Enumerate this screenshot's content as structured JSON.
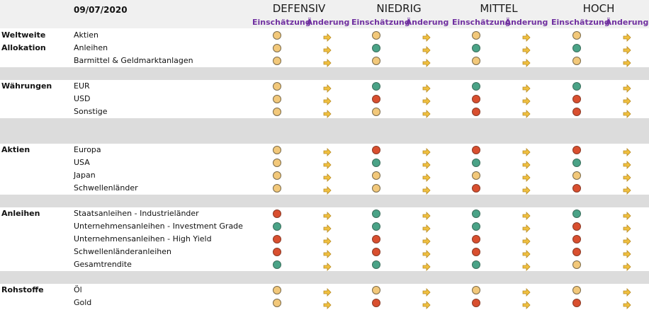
{
  "date": "09/07/2020",
  "profiles": [
    "DEFENSIV",
    "NIEDRIG",
    "MITTEL",
    "HOCH"
  ],
  "sub_labels": {
    "assessment": "Einschätzung",
    "change": "Änderung"
  },
  "colors": {
    "yellow": "#f2c87a",
    "green": "#4aa387",
    "red": "#d94f2f",
    "arrow": "#f0c040",
    "accent": "#7030a0"
  },
  "icon": "arrow-right-icon",
  "sections": [
    {
      "category": [
        "Weltweite",
        "Allokation"
      ],
      "rows": [
        {
          "label": "Aktien",
          "ratings": [
            "y",
            "y",
            "y",
            "y"
          ]
        },
        {
          "label": "Anleihen",
          "ratings": [
            "y",
            "g",
            "g",
            "g"
          ]
        },
        {
          "label": "Barmittel & Geldmarktanlagen",
          "ratings": [
            "y",
            "y",
            "y",
            "y"
          ]
        }
      ]
    },
    {
      "category": [
        "Währungen"
      ],
      "rows": [
        {
          "label": "EUR",
          "ratings": [
            "y",
            "g",
            "g",
            "g"
          ]
        },
        {
          "label": "USD",
          "ratings": [
            "y",
            "r",
            "r",
            "r"
          ]
        },
        {
          "label": "Sonstige",
          "ratings": [
            "y",
            "y",
            "r",
            "r"
          ]
        }
      ]
    },
    {
      "category": [
        "Aktien"
      ],
      "rows": [
        {
          "label": "Europa",
          "ratings": [
            "y",
            "r",
            "r",
            "r"
          ]
        },
        {
          "label": "USA",
          "ratings": [
            "y",
            "g",
            "g",
            "g"
          ]
        },
        {
          "label": "Japan",
          "ratings": [
            "y",
            "y",
            "y",
            "y"
          ]
        },
        {
          "label": "Schwellenländer",
          "ratings": [
            "y",
            "y",
            "r",
            "r"
          ]
        }
      ]
    },
    {
      "category": [
        "Anleihen"
      ],
      "rows": [
        {
          "label": "Staatsanleihen - Industrieländer",
          "ratings": [
            "r",
            "g",
            "g",
            "g"
          ]
        },
        {
          "label": "Unternehmensanleihen - Investment Grade",
          "ratings": [
            "g",
            "g",
            "g",
            "r"
          ]
        },
        {
          "label": "Unternehmensanleihen - High Yield",
          "ratings": [
            "r",
            "r",
            "r",
            "r"
          ]
        },
        {
          "label": "Schwellenländeranleihen",
          "ratings": [
            "r",
            "r",
            "r",
            "r"
          ]
        },
        {
          "label": "Gesamtrendite",
          "ratings": [
            "g",
            "g",
            "g",
            "y"
          ]
        }
      ]
    },
    {
      "category": [
        "Rohstoffe"
      ],
      "rows": [
        {
          "label": "Öl",
          "ratings": [
            "y",
            "y",
            "y",
            "y"
          ]
        },
        {
          "label": "Gold",
          "ratings": [
            "y",
            "r",
            "r",
            "r"
          ]
        }
      ]
    }
  ]
}
